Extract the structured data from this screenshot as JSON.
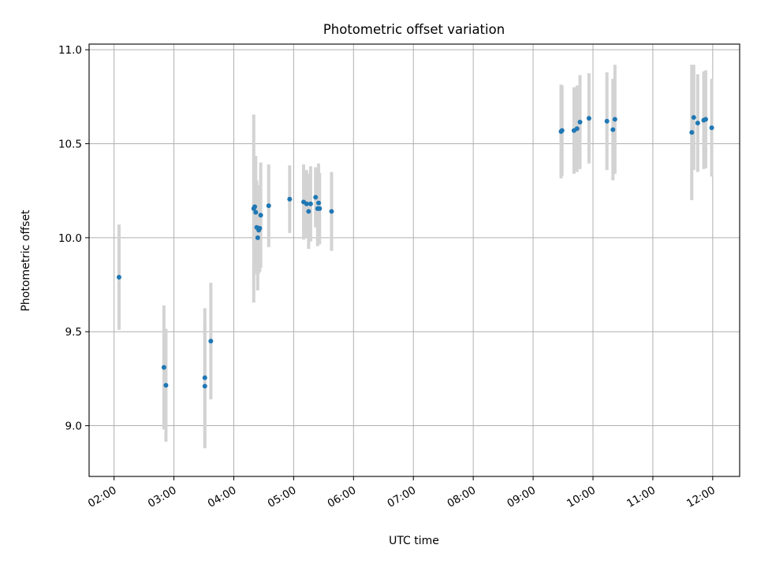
{
  "chart_data": {
    "type": "scatter",
    "title": "Photometric offset variation",
    "xlabel": "UTC time",
    "ylabel": "Photometric offset",
    "grid": true,
    "xlim": [
      "01:35",
      "12:27"
    ],
    "ylim": [
      8.73,
      11.03
    ],
    "x_ticks": [
      "02:00",
      "03:00",
      "04:00",
      "05:00",
      "06:00",
      "07:00",
      "08:00",
      "09:00",
      "10:00",
      "11:00",
      "12:00"
    ],
    "y_ticks": [
      "9.0",
      "9.5",
      "10.0",
      "10.5",
      "11.0"
    ],
    "colors": {
      "point": "#1f77b4",
      "error_bar": "#d3d3d3",
      "grid": "#b0b0b0"
    },
    "points": [
      {
        "x": "02:05",
        "y": 9.79,
        "err": 0.28
      },
      {
        "x": "02:50",
        "y": 9.31,
        "err": 0.33
      },
      {
        "x": "02:52",
        "y": 9.215,
        "err": 0.3
      },
      {
        "x": "03:31",
        "y": 9.255,
        "err": 0.37
      },
      {
        "x": "03:31",
        "y": 9.21,
        "err": 0.33
      },
      {
        "x": "03:37",
        "y": 9.45,
        "err": 0.31
      },
      {
        "x": "04:20",
        "y": 10.155,
        "err": 0.5
      },
      {
        "x": "04:21",
        "y": 10.165,
        "err": 0.27
      },
      {
        "x": "04:22",
        "y": 10.135,
        "err": 0.3
      },
      {
        "x": "04:23",
        "y": 10.055,
        "err": 0.25
      },
      {
        "x": "04:24",
        "y": 10.0,
        "err": 0.28
      },
      {
        "x": "04:25",
        "y": 10.04,
        "err": 0.23
      },
      {
        "x": "04:26",
        "y": 10.05,
        "err": 0.23
      },
      {
        "x": "04:27",
        "y": 10.12,
        "err": 0.28
      },
      {
        "x": "04:35",
        "y": 10.17,
        "err": 0.22
      },
      {
        "x": "04:56",
        "y": 10.205,
        "err": 0.18
      },
      {
        "x": "05:10",
        "y": 10.19,
        "err": 0.2
      },
      {
        "x": "05:13",
        "y": 10.18,
        "err": 0.18
      },
      {
        "x": "05:15",
        "y": 10.14,
        "err": 0.2
      },
      {
        "x": "05:17",
        "y": 10.18,
        "err": 0.2
      },
      {
        "x": "05:22",
        "y": 10.215,
        "err": 0.16
      },
      {
        "x": "05:24",
        "y": 10.155,
        "err": 0.2
      },
      {
        "x": "05:25",
        "y": 10.185,
        "err": 0.21
      },
      {
        "x": "05:26",
        "y": 10.155,
        "err": 0.19
      },
      {
        "x": "05:38",
        "y": 10.14,
        "err": 0.21
      },
      {
        "x": "09:28",
        "y": 10.565,
        "err": 0.25
      },
      {
        "x": "09:29",
        "y": 10.57,
        "err": 0.24
      },
      {
        "x": "09:41",
        "y": 10.57,
        "err": 0.23
      },
      {
        "x": "09:44",
        "y": 10.58,
        "err": 0.23
      },
      {
        "x": "09:47",
        "y": 10.615,
        "err": 0.25
      },
      {
        "x": "09:56",
        "y": 10.635,
        "err": 0.24
      },
      {
        "x": "10:14",
        "y": 10.62,
        "err": 0.26
      },
      {
        "x": "10:20",
        "y": 10.575,
        "err": 0.27
      },
      {
        "x": "10:22",
        "y": 10.63,
        "err": 0.29
      },
      {
        "x": "11:39",
        "y": 10.56,
        "err": 0.36
      },
      {
        "x": "11:41",
        "y": 10.64,
        "err": 0.28
      },
      {
        "x": "11:45",
        "y": 10.61,
        "err": 0.26
      },
      {
        "x": "11:51",
        "y": 10.625,
        "err": 0.26
      },
      {
        "x": "11:53",
        "y": 10.63,
        "err": 0.26
      },
      {
        "x": "11:59",
        "y": 10.585,
        "err": 0.26
      }
    ]
  }
}
